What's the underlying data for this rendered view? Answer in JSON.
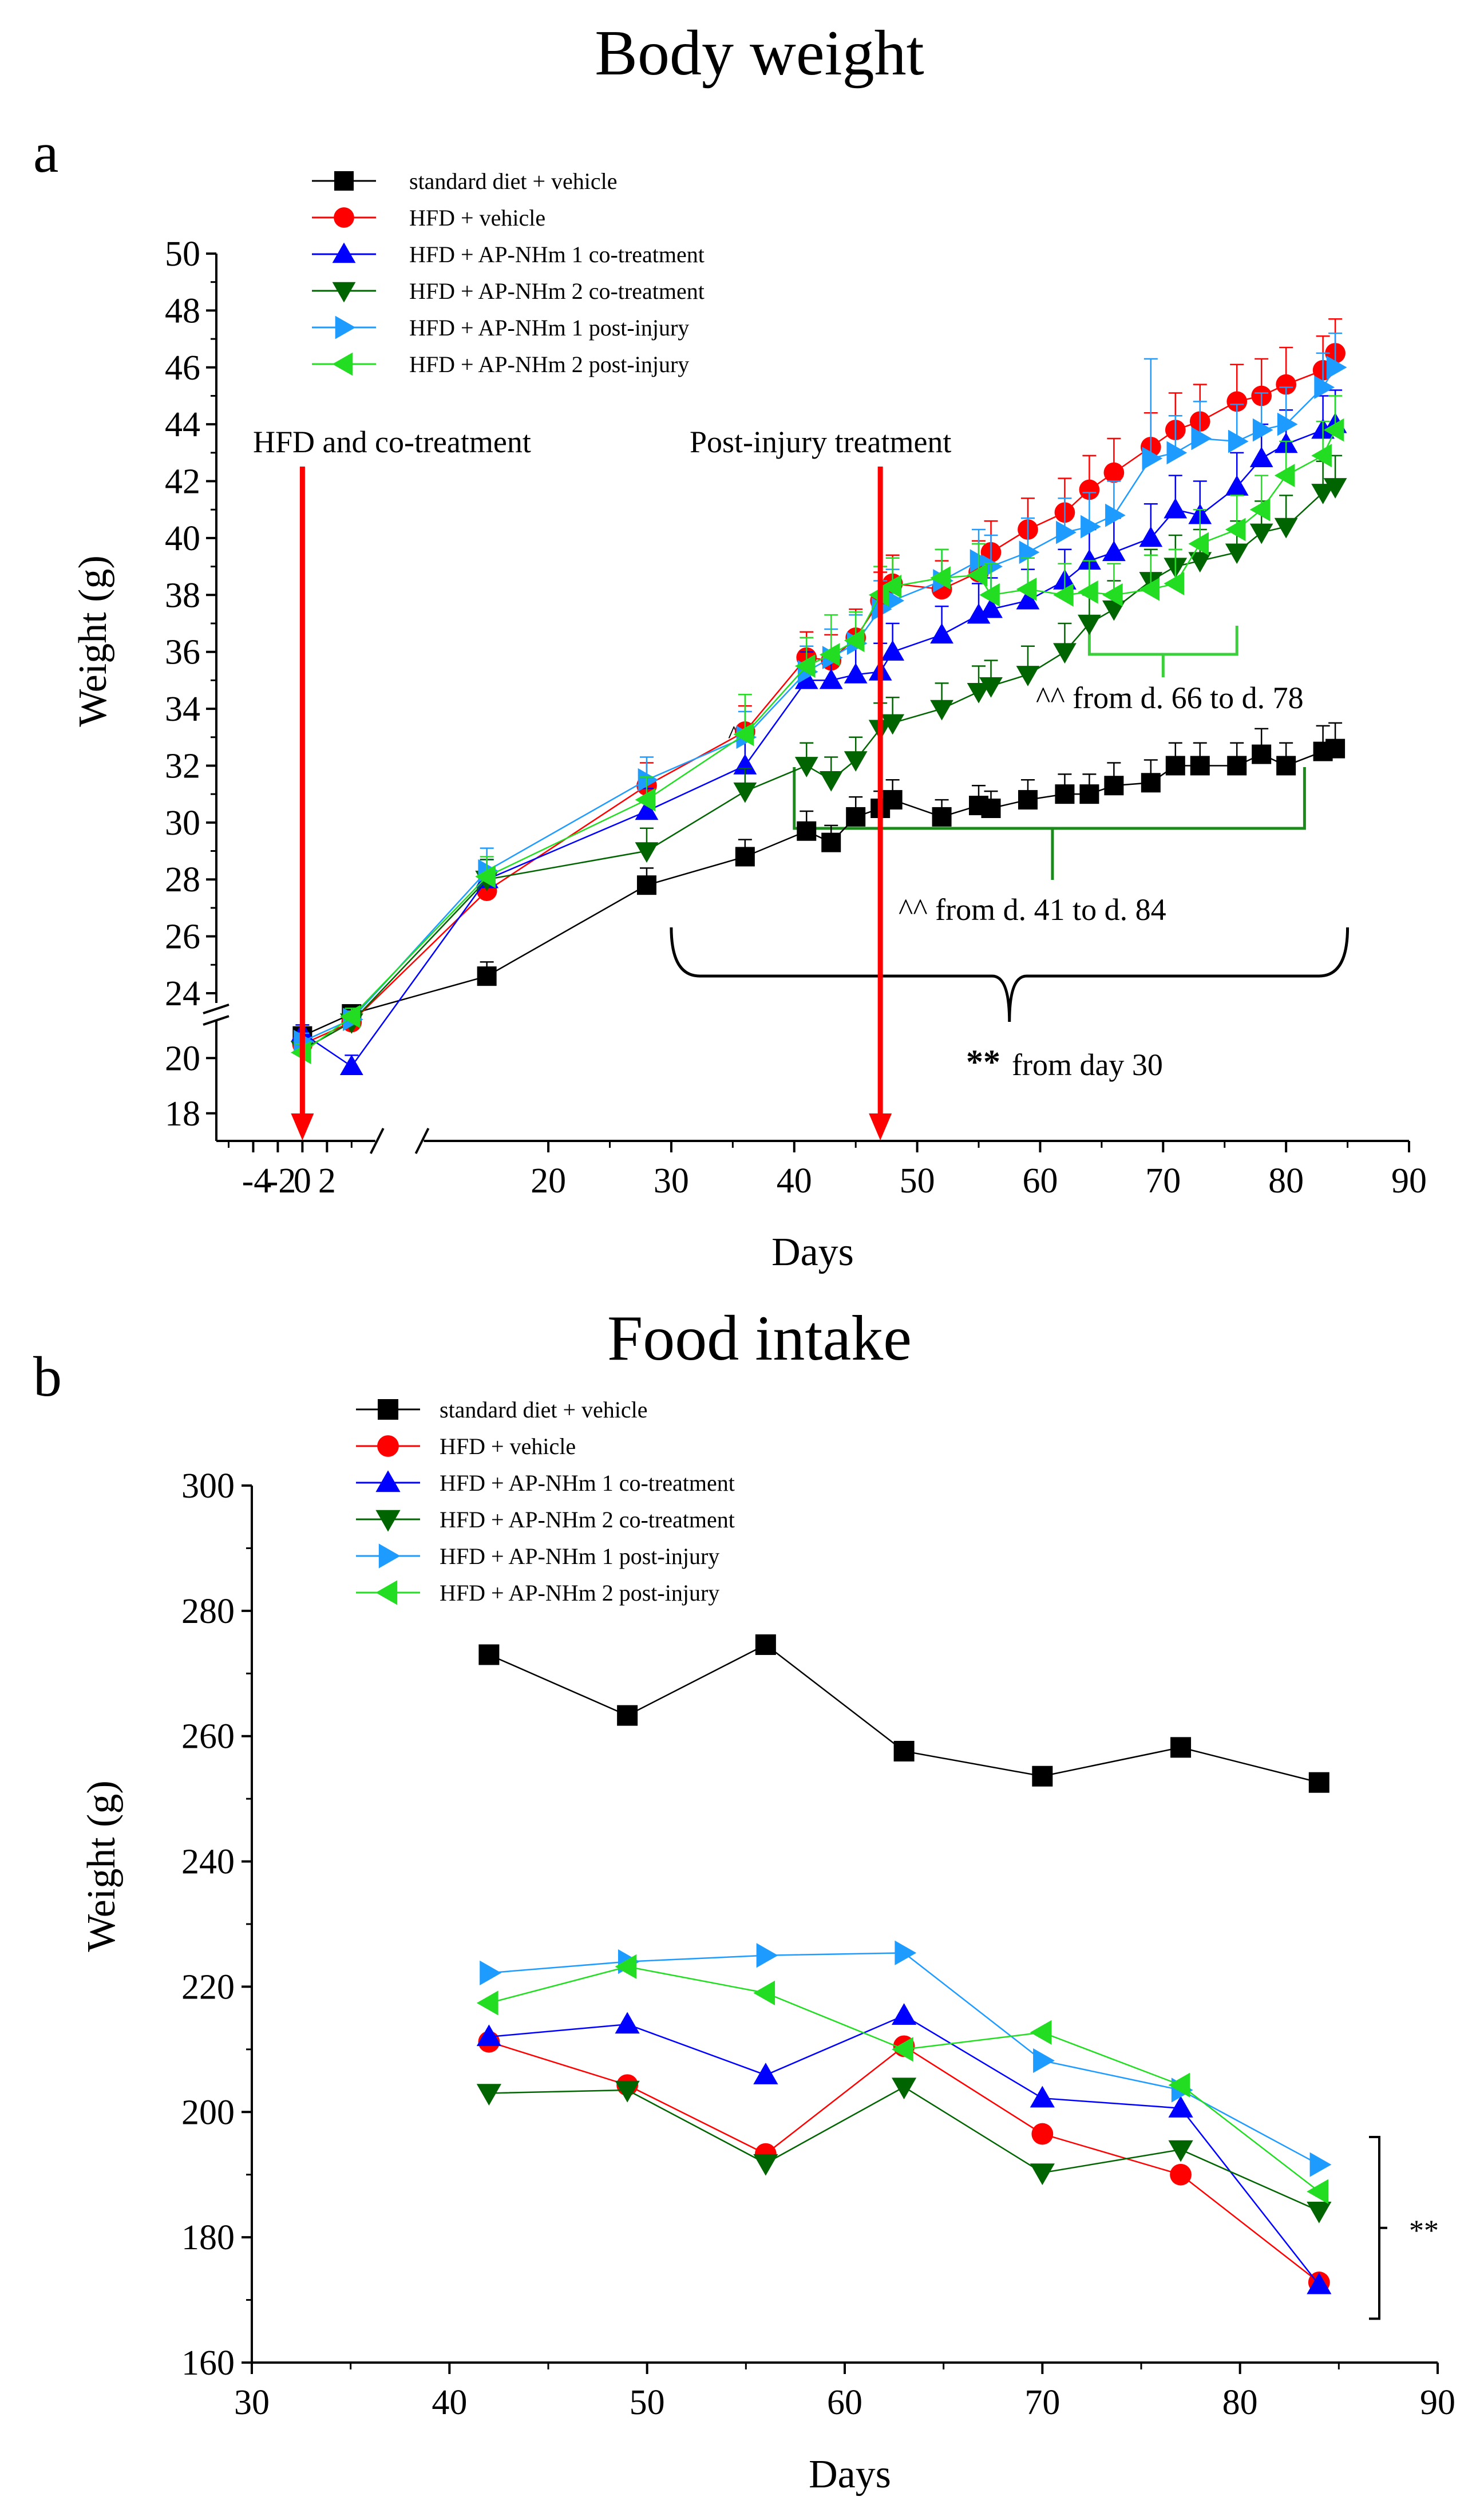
{
  "figure": {
    "panel_a_title": "Body weight",
    "panel_b_title": "Food intake",
    "panel_a_letter": "a",
    "panel_b_letter": "b"
  },
  "chart_data": [
    {
      "type": "line",
      "title": "Body weight",
      "xlabel": "Days",
      "ylabel": "Weight (g)",
      "xlim": [
        -7,
        90
      ],
      "ylim": [
        17,
        50
      ],
      "axis_break_y": [
        21,
        24
      ],
      "axis_break_x": [
        5,
        14
      ],
      "xticks": [
        -4,
        -2,
        0,
        2,
        20,
        30,
        40,
        50,
        60,
        70,
        80,
        90
      ],
      "xtick_labels": [
        "-4",
        "-2",
        "0",
        "2",
        "20",
        "30",
        "40",
        "50",
        "60",
        "70",
        "80",
        "90"
      ],
      "yticks": [
        18,
        20,
        24,
        26,
        28,
        30,
        32,
        34,
        36,
        38,
        40,
        42,
        44,
        46,
        48,
        50
      ],
      "ytick_labels": [
        "18",
        "20",
        "24",
        "26",
        "28",
        "30",
        "32",
        "34",
        "36",
        "38",
        "40",
        "42",
        "44",
        "46",
        "48",
        "50"
      ],
      "legend_position": "top-left",
      "series": [
        {
          "name": "standard diet + vehicle",
          "color": "#000000",
          "marker": "square",
          "x": [
            0,
            4,
            15,
            28,
            36,
            41,
            43,
            45,
            47,
            48,
            52,
            55,
            56,
            59,
            62,
            64,
            66,
            69,
            71,
            73,
            76,
            78,
            80,
            83,
            84
          ],
          "y": [
            20.8,
            21.6,
            24.6,
            27.8,
            28.8,
            29.7,
            29.3,
            30.2,
            30.5,
            30.8,
            30.2,
            30.6,
            30.5,
            30.8,
            31.0,
            31.0,
            31.3,
            31.4,
            32.0,
            32.0,
            32.0,
            32.4,
            32.0,
            32.5,
            32.6
          ],
          "err": [
            0.3,
            0.3,
            0.5,
            0.6,
            0.6,
            0.7,
            0.6,
            0.7,
            0.6,
            0.7,
            0.6,
            0.7,
            0.6,
            0.7,
            0.7,
            0.7,
            0.8,
            0.8,
            0.8,
            0.8,
            0.8,
            0.9,
            0.8,
            0.9,
            0.9
          ]
        },
        {
          "name": "HFD + vehicle",
          "color": "#ff0000",
          "marker": "circle",
          "x": [
            0,
            4,
            15,
            28,
            36,
            41,
            43,
            45,
            47,
            48,
            52,
            55,
            56,
            59,
            62,
            64,
            66,
            69,
            71,
            73,
            76,
            78,
            80,
            83,
            84
          ],
          "y": [
            20.5,
            21.3,
            27.6,
            31.3,
            33.2,
            35.8,
            35.7,
            36.5,
            37.8,
            38.4,
            38.2,
            38.8,
            39.5,
            40.3,
            40.9,
            41.7,
            42.3,
            43.2,
            43.8,
            44.1,
            44.8,
            45.0,
            45.4,
            45.9,
            46.5
          ],
          "err": [
            0.3,
            0.3,
            0.7,
            0.8,
            0.9,
            0.9,
            0.9,
            1.0,
            1.0,
            1.0,
            1.0,
            1.1,
            1.1,
            1.1,
            1.2,
            1.2,
            1.2,
            1.2,
            1.3,
            1.3,
            1.3,
            1.3,
            1.3,
            1.2,
            1.2
          ]
        },
        {
          "name": "HFD + AP-NHm 1 co-treatment",
          "color": "#0000ff",
          "marker": "triangle-up",
          "x": [
            0,
            4,
            15,
            28,
            36,
            41,
            43,
            45,
            47,
            48,
            52,
            55,
            56,
            59,
            62,
            64,
            66,
            69,
            71,
            73,
            76,
            78,
            80,
            83,
            84
          ],
          "y": [
            20.9,
            19.7,
            28.0,
            30.4,
            32.0,
            35.0,
            35.0,
            35.2,
            35.3,
            36.0,
            36.6,
            37.3,
            37.5,
            37.8,
            38.5,
            39.2,
            39.5,
            40.0,
            41.0,
            40.8,
            41.8,
            42.8,
            43.3,
            43.8,
            44.0
          ],
          "err": [
            0.3,
            0.4,
            0.7,
            0.8,
            0.9,
            1.0,
            1.0,
            1.0,
            1.0,
            1.0,
            1.0,
            1.1,
            1.1,
            1.1,
            1.1,
            1.1,
            1.2,
            1.2,
            1.2,
            1.2,
            1.2,
            1.2,
            1.2,
            1.2,
            1.2
          ]
        },
        {
          "name": "HFD + AP-NHm 2 co-treatment",
          "color": "#006400",
          "marker": "triangle-down",
          "x": [
            0,
            4,
            15,
            28,
            36,
            41,
            43,
            45,
            47,
            48,
            52,
            55,
            56,
            59,
            62,
            64,
            66,
            69,
            71,
            73,
            76,
            78,
            80,
            83,
            84
          ],
          "y": [
            20.3,
            21.3,
            28.0,
            29.0,
            31.1,
            32.0,
            31.5,
            32.2,
            33.3,
            33.5,
            34.0,
            34.6,
            34.8,
            35.2,
            36.0,
            37.0,
            37.5,
            38.5,
            39.0,
            39.2,
            39.5,
            40.2,
            40.4,
            41.6,
            41.8
          ],
          "err": [
            0.3,
            0.3,
            0.7,
            0.8,
            0.8,
            0.8,
            0.8,
            0.8,
            0.9,
            0.9,
            0.9,
            0.9,
            0.9,
            1.0,
            1.0,
            1.0,
            1.0,
            1.1,
            1.1,
            1.1,
            1.1,
            1.1,
            1.1,
            1.1,
            1.1
          ]
        },
        {
          "name": "HFD + AP-NHm 1 post-injury",
          "color": "#1e9bff",
          "marker": "triangle-right",
          "x": [
            0,
            4,
            15,
            28,
            36,
            41,
            43,
            45,
            47,
            48,
            52,
            55,
            56,
            59,
            62,
            64,
            66,
            69,
            71,
            73,
            76,
            78,
            80,
            83,
            84
          ],
          "y": [
            20.6,
            21.4,
            28.3,
            31.5,
            33.0,
            35.3,
            35.8,
            36.3,
            37.5,
            37.8,
            38.5,
            39.2,
            39.0,
            39.5,
            40.2,
            40.4,
            40.8,
            42.8,
            43.0,
            43.5,
            43.4,
            43.8,
            44.0,
            45.3,
            46.0
          ],
          "err": [
            0.3,
            0.3,
            0.8,
            0.8,
            0.9,
            0.9,
            1.0,
            1.0,
            1.0,
            1.1,
            1.1,
            1.1,
            1.1,
            1.2,
            1.2,
            1.2,
            1.2,
            3.5,
            1.3,
            1.3,
            1.3,
            1.3,
            1.3,
            1.2,
            1.2
          ]
        },
        {
          "name": "HFD + AP-NHm 2 post-injury",
          "color": "#22dd22",
          "marker": "triangle-left",
          "x": [
            0,
            4,
            15,
            28,
            36,
            41,
            43,
            45,
            47,
            48,
            52,
            55,
            56,
            59,
            62,
            64,
            66,
            69,
            71,
            73,
            76,
            78,
            80,
            83,
            84
          ],
          "y": [
            20.2,
            21.5,
            28.1,
            30.8,
            33.1,
            35.5,
            35.9,
            36.4,
            38.0,
            38.3,
            38.6,
            38.7,
            38.0,
            38.2,
            38.0,
            38.1,
            38.0,
            38.2,
            38.4,
            39.8,
            40.3,
            41.0,
            42.2,
            42.9,
            43.8
          ],
          "err": [
            0.3,
            0.3,
            0.7,
            0.8,
            1.4,
            1.0,
            1.4,
            1.0,
            1.0,
            1.0,
            1.0,
            1.1,
            1.1,
            1.1,
            1.1,
            1.1,
            1.1,
            1.2,
            1.2,
            1.2,
            1.2,
            1.2,
            1.2,
            1.2,
            1.2
          ]
        }
      ],
      "annotations": {
        "arrow1_label": "HFD and co-treatment",
        "arrow1_x": 0,
        "arrow2_label": "Post-injury treatment",
        "arrow2_x": 47,
        "bracket_green_light_text": "^^ from d. 66 to d. 78",
        "bracket_green_light_range": [
          64,
          76
        ],
        "bracket_green_dark_text": "^^ from d. 41 to d. 84",
        "bracket_green_dark_range": [
          40,
          81.5
        ],
        "bracket_black_stars": "**",
        "bracket_black_text": "from day 30",
        "bracket_black_range": [
          30,
          85
        ],
        "small_marker": "^^"
      }
    },
    {
      "type": "line",
      "title": "Food intake",
      "xlabel": "Days",
      "ylabel": "Weight (g)",
      "xlim": [
        30,
        90
      ],
      "ylim": [
        160,
        300
      ],
      "xticks": [
        30,
        40,
        50,
        60,
        70,
        80,
        90
      ],
      "xtick_labels": [
        "30",
        "40",
        "50",
        "60",
        "70",
        "80",
        "90"
      ],
      "yticks": [
        160,
        180,
        200,
        220,
        240,
        260,
        280,
        300
      ],
      "ytick_labels": [
        "160",
        "180",
        "200",
        "220",
        "240",
        "260",
        "280",
        "300"
      ],
      "legend_position": "top-left",
      "series": [
        {
          "name": "standard diet + vehicle",
          "color": "#000000",
          "marker": "square",
          "x": [
            42,
            49,
            56,
            63,
            70,
            77,
            84
          ],
          "y": [
            273,
            263.3,
            274.6,
            257.6,
            253.6,
            258.2,
            252.6
          ]
        },
        {
          "name": "HFD + vehicle",
          "color": "#ff0000",
          "marker": "circle",
          "x": [
            42,
            49,
            56,
            63,
            70,
            77,
            84
          ],
          "y": [
            211.2,
            204.3,
            193.3,
            210.5,
            196.5,
            190.0,
            172.8
          ]
        },
        {
          "name": "HFD + AP-NHm 1 co-treatment",
          "color": "#0000ff",
          "marker": "triangle-up",
          "x": [
            42,
            49,
            56,
            63,
            70,
            77,
            84
          ],
          "y": [
            212.0,
            214.0,
            205.9,
            215.4,
            202.2,
            200.6,
            172.4
          ]
        },
        {
          "name": "HFD + AP-NHm 2 co-treatment",
          "color": "#006400",
          "marker": "triangle-down",
          "x": [
            42,
            49,
            56,
            63,
            70,
            77,
            84
          ],
          "y": [
            203.0,
            203.5,
            191.8,
            204.0,
            190.3,
            194.0,
            184.2
          ]
        },
        {
          "name": "HFD + AP-NHm 1 post-injury",
          "color": "#1e9bff",
          "marker": "triangle-right",
          "x": [
            42,
            49,
            56,
            63,
            70,
            77,
            84
          ],
          "y": [
            222.2,
            224.0,
            225.0,
            225.4,
            208.2,
            203.5,
            191.6
          ]
        },
        {
          "name": "HFD + AP-NHm 2 post-injury",
          "color": "#22dd22",
          "marker": "triangle-left",
          "x": [
            42,
            49,
            56,
            63,
            70,
            77,
            84
          ],
          "y": [
            217.4,
            223.2,
            219.0,
            210.0,
            212.7,
            204.3,
            187.3
          ]
        }
      ],
      "annotations": {
        "bracket_stars": "**",
        "bracket_range": [
          167,
          196
        ]
      }
    }
  ]
}
